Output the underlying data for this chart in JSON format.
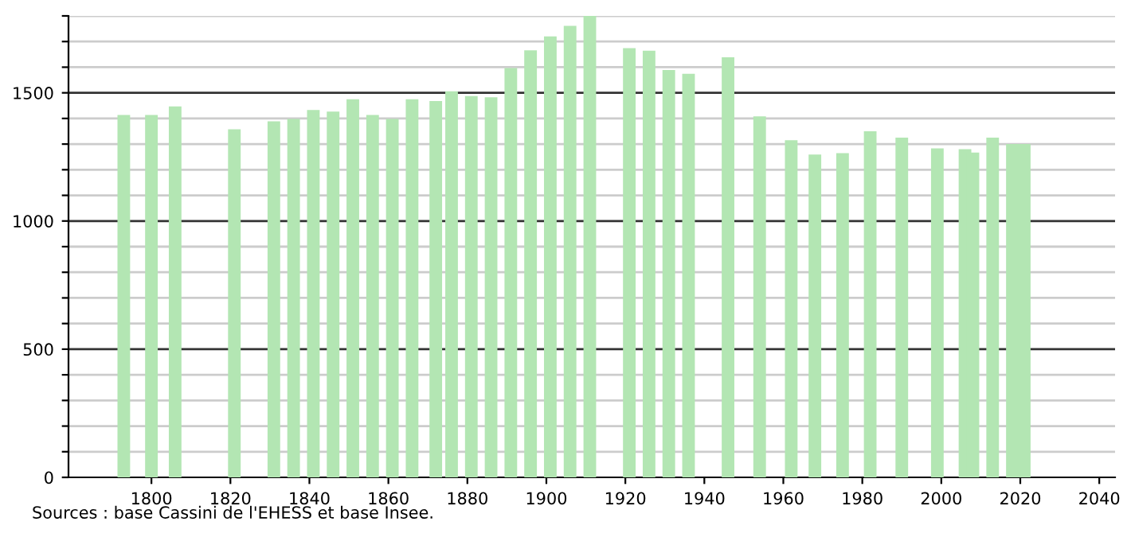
{
  "chart_data": {
    "type": "bar",
    "x": [
      1793,
      1800,
      1806,
      1821,
      1831,
      1836,
      1841,
      1846,
      1851,
      1856,
      1861,
      1866,
      1872,
      1876,
      1881,
      1886,
      1891,
      1896,
      1901,
      1906,
      1911,
      1921,
      1926,
      1931,
      1936,
      1946,
      1954,
      1962,
      1968,
      1975,
      1982,
      1990,
      1999,
      2006,
      2008,
      2013,
      2018,
      2021
    ],
    "values": [
      1414,
      1414,
      1447,
      1358,
      1389,
      1398,
      1433,
      1427,
      1475,
      1414,
      1398,
      1475,
      1468,
      1506,
      1487,
      1483,
      1597,
      1666,
      1720,
      1761,
      1800,
      1674,
      1664,
      1589,
      1574,
      1639,
      1408,
      1315,
      1259,
      1265,
      1350,
      1325,
      1283,
      1280,
      1267,
      1325,
      1300,
      1300
    ],
    "color": "#b3e6b3",
    "xlim": [
      1779,
      2044
    ],
    "xticks": [
      1800,
      1820,
      1840,
      1860,
      1880,
      1900,
      1920,
      1940,
      1960,
      1980,
      2000,
      2020,
      2040
    ],
    "ylim": [
      0,
      1800
    ],
    "yticks": [
      0,
      {
        "value": 100,
        "label": null
      },
      {
        "value": 200,
        "label": null
      },
      {
        "value": 300,
        "label": null
      },
      {
        "value": 400,
        "label": null
      },
      500,
      {
        "value": 600,
        "label": null
      },
      {
        "value": 700,
        "label": null
      },
      {
        "value": 800,
        "label": null
      },
      {
        "value": 900,
        "label": null
      },
      1000,
      {
        "value": 1100,
        "label": null
      },
      {
        "value": 1200,
        "label": null
      },
      {
        "value": 1300,
        "label": null
      },
      {
        "value": 1400,
        "label": null
      },
      1500,
      {
        "value": 1600,
        "label": null
      },
      {
        "value": 1700,
        "label": null
      },
      {
        "value": 1800,
        "label": null
      }
    ],
    "grid": "y",
    "annotations": [
      "Sources : base Cassini de l'EHESS et base Insee."
    ]
  }
}
